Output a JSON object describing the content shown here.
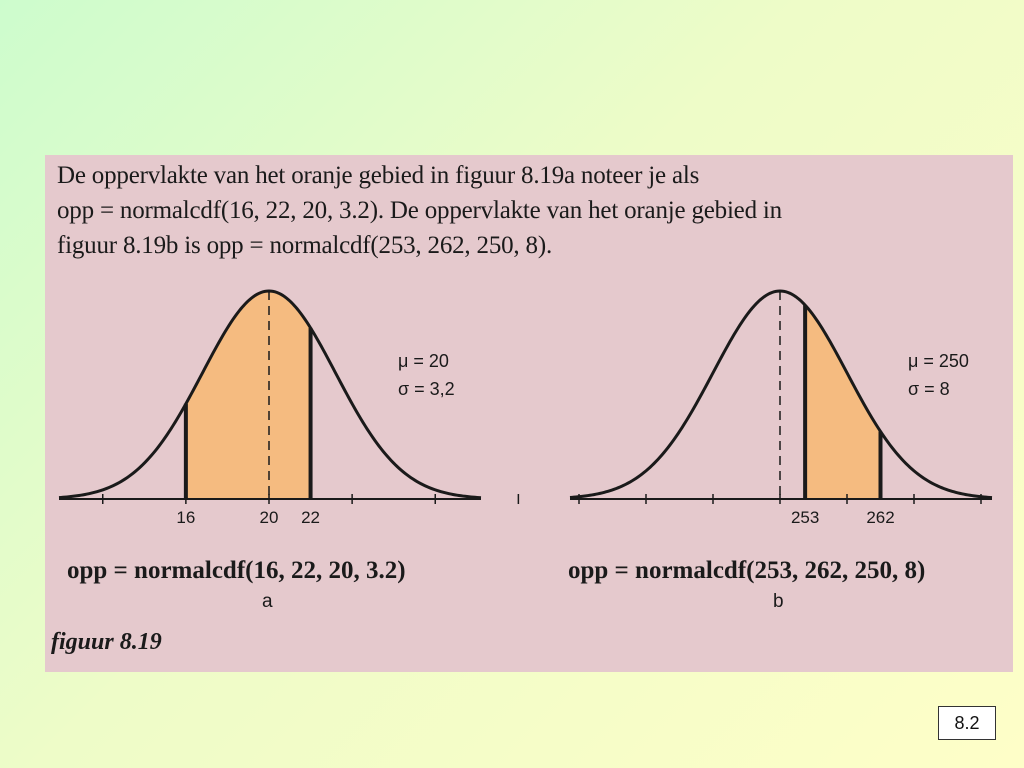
{
  "intro": {
    "line1": "De oppervlakte van het oranje gebied in figuur 8.19a noteer je als",
    "line2": "opp = normalcdf(16, 22, 20, 3.2). De oppervlakte van het oranje gebied in",
    "line3": "figuur 8.19b is  opp = normalcdf(253, 262, 250, 8)."
  },
  "figure_a": {
    "mu_label": "μ = 20",
    "sigma_label": "σ = 3,2",
    "mu": 20,
    "sigma": 3.2,
    "lower": 16,
    "upper": 22,
    "ticks": [
      8,
      12,
      16,
      20,
      24,
      28,
      32
    ],
    "tick_labels": [
      "16",
      "20",
      "22"
    ],
    "tick_label_values": [
      16,
      20,
      22
    ],
    "formula": "opp = normalcdf(16, 22, 20, 3.2)",
    "sublabel": "a"
  },
  "figure_b": {
    "mu_label": "μ = 250",
    "sigma_label": "σ = 8",
    "mu": 250,
    "sigma": 8,
    "lower": 253,
    "upper": 262,
    "ticks": [
      226,
      234,
      242,
      250,
      258,
      266,
      274
    ],
    "tick_labels": [
      "253",
      "262"
    ],
    "tick_label_values": [
      253,
      262
    ],
    "formula": "opp = normalcdf(253, 262, 250, 8)",
    "sublabel": "b"
  },
  "caption": "figuur 8.19",
  "slide_number": "8.2",
  "colors": {
    "panel": "#e5c9cd",
    "shaded_area": "#f5bb80",
    "curve": "#1a1a1a"
  }
}
